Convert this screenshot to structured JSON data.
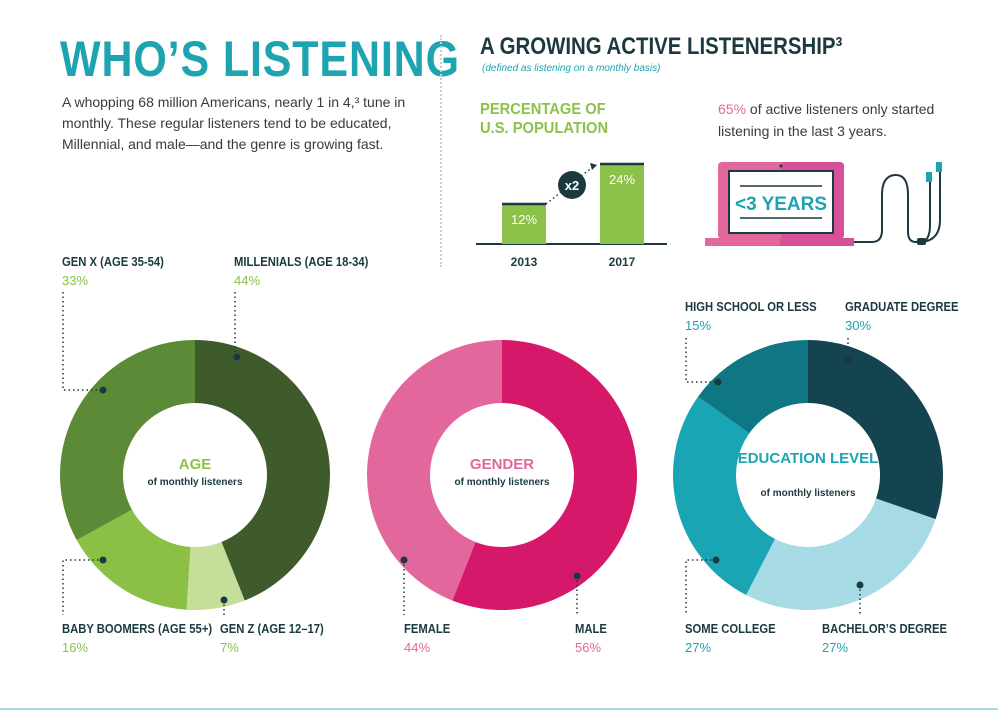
{
  "header": {
    "title": "WHO’S LISTENING",
    "intro": "A whopping 68 million Americans, nearly 1 in 4,³ tune in monthly. These regular listeners tend to be educated, Millennial, and male—and the genre is growing fast."
  },
  "growth": {
    "title": "A GROWING ACTIVE LISTENERSHIP³",
    "note": "(defined as listening on a monthly basis)",
    "stat_highlight": "65%",
    "stat_text": " of active listeners only started listening in the last 3 years.",
    "laptop_text": "<3 YEARS"
  },
  "colors": {
    "teal": "#1ea3b0",
    "green": "#8cc14a",
    "pink": "#e2679c",
    "dark": "#1b3a3f"
  },
  "chart_data": [
    {
      "type": "bar",
      "title": "PERCENTAGE OF U.S. POPULATION",
      "categories": [
        "2013",
        "2017"
      ],
      "values": [
        12,
        24
      ],
      "labels": [
        "12%",
        "24%"
      ],
      "annotation": "x2",
      "ylim": [
        0,
        30
      ]
    },
    {
      "type": "pie",
      "title": "AGE",
      "subtitle": "of monthly listeners",
      "slices": [
        {
          "name": "MILLENIALS (AGE 18-34)",
          "value": 44,
          "label": "44%",
          "color": "#3f5a2b"
        },
        {
          "name": "GEN Z (AGE 12–17)",
          "value": 7,
          "label": "7%",
          "color": "#c5df9a"
        },
        {
          "name": "BABY BOOMERS (AGE 55+)",
          "value": 16,
          "label": "16%",
          "color": "#8bbf45"
        },
        {
          "name": "GEN X (AGE 35-54)",
          "value": 33,
          "label": "33%",
          "color": "#5d8a37"
        }
      ]
    },
    {
      "type": "pie",
      "title": "GENDER",
      "subtitle": "of monthly listeners",
      "slices": [
        {
          "name": "MALE",
          "value": 56,
          "label": "56%",
          "color": "#d6186b"
        },
        {
          "name": "FEMALE",
          "value": 44,
          "label": "44%",
          "color": "#e2679c"
        }
      ]
    },
    {
      "type": "pie",
      "title": "EDUCATION LEVEL",
      "subtitle": "of monthly listeners",
      "slices": [
        {
          "name": "GRADUATE DEGREE",
          "value": 30,
          "label": "30%",
          "color": "#14444f"
        },
        {
          "name": "BACHELOR’S DEGREE",
          "value": 27,
          "label": "27%",
          "color": "#a6dbe6"
        },
        {
          "name": "SOME COLLEGE",
          "value": 27,
          "label": "27%",
          "color": "#1aa5b4"
        },
        {
          "name": "HIGH SCHOOL OR LESS",
          "value": 15,
          "label": "15%",
          "color": "#0e7783"
        }
      ]
    }
  ]
}
